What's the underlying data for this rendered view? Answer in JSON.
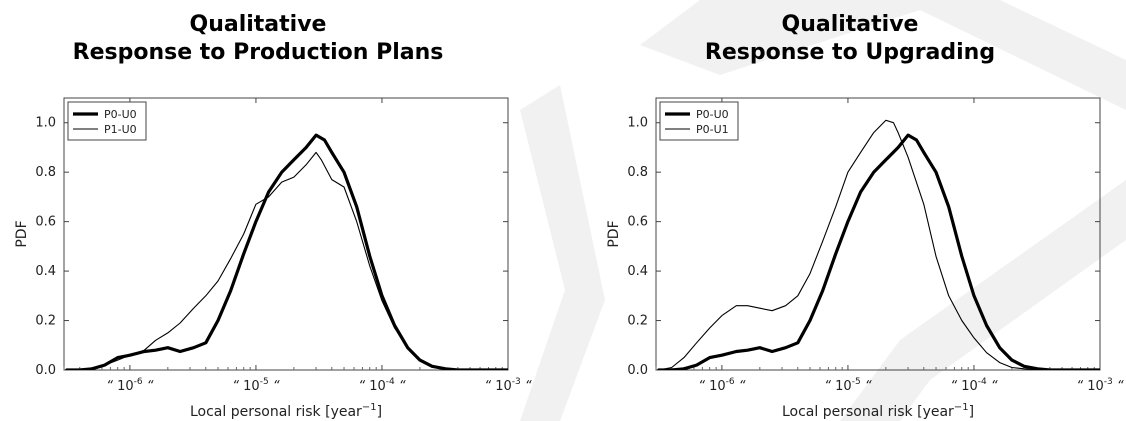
{
  "chart_data": [
    {
      "type": "line",
      "title_line1": "Qualitative",
      "title_line2": "Response to Production Plans",
      "xlabel": "Local personal risk",
      "xunit_base": "[year",
      "xunit_exp": "−1",
      "xunit_close": "]",
      "ylabel": "PDF",
      "xscale": "log",
      "xlim": [
        3e-07,
        0.001
      ],
      "ylim": [
        0,
        1.1
      ],
      "yticks": [
        "0.0",
        "0.2",
        "0.4",
        "0.6",
        "0.8",
        "1.0"
      ],
      "xticks": [
        {
          "base": "10",
          "exp": "-6"
        },
        {
          "base": "10",
          "exp": "-5"
        },
        {
          "base": "10",
          "exp": "-4"
        },
        {
          "base": "10",
          "exp": "-3"
        }
      ],
      "tick_quote": "“",
      "legend_position": "top-left",
      "series": [
        {
          "name": "P0-U0",
          "thick": true,
          "x": [
            3.16e-07,
            4e-07,
            5e-07,
            6.3e-07,
            8e-07,
            1e-06,
            1.3e-06,
            1.6e-06,
            2e-06,
            2.5e-06,
            3.2e-06,
            4e-06,
            5e-06,
            6.3e-06,
            8e-06,
            1e-05,
            1.26e-05,
            1.6e-05,
            2e-05,
            2.5e-05,
            3e-05,
            3.5e-05,
            4e-05,
            5e-05,
            6.3e-05,
            8e-05,
            0.0001,
            0.000126,
            0.00016,
            0.0002,
            0.00025,
            0.00032,
            0.0004,
            0.0005,
            0.0007,
            0.001
          ],
          "y": [
            0.0,
            0.0,
            0.005,
            0.02,
            0.05,
            0.06,
            0.075,
            0.08,
            0.09,
            0.075,
            0.09,
            0.11,
            0.2,
            0.32,
            0.47,
            0.6,
            0.72,
            0.8,
            0.85,
            0.9,
            0.95,
            0.93,
            0.88,
            0.8,
            0.66,
            0.46,
            0.3,
            0.18,
            0.09,
            0.04,
            0.015,
            0.005,
            0.0,
            0.0,
            0.0,
            0.0
          ]
        },
        {
          "name": "P1-U0",
          "thick": false,
          "x": [
            3.16e-07,
            4e-07,
            5e-07,
            6.3e-07,
            8e-07,
            1e-06,
            1.3e-06,
            1.6e-06,
            2e-06,
            2.5e-06,
            3.2e-06,
            4e-06,
            5e-06,
            6.3e-06,
            8e-06,
            1e-05,
            1.26e-05,
            1.6e-05,
            2e-05,
            2.5e-05,
            3e-05,
            3.3e-05,
            4e-05,
            5e-05,
            6.3e-05,
            8e-05,
            0.0001,
            0.000126,
            0.00016,
            0.0002,
            0.00025,
            0.00032,
            0.0004,
            0.0005,
            0.0007,
            0.001
          ],
          "y": [
            0.0,
            0.0,
            0.005,
            0.02,
            0.04,
            0.06,
            0.08,
            0.12,
            0.15,
            0.19,
            0.25,
            0.3,
            0.36,
            0.45,
            0.55,
            0.67,
            0.7,
            0.76,
            0.78,
            0.83,
            0.88,
            0.85,
            0.77,
            0.74,
            0.6,
            0.42,
            0.28,
            0.17,
            0.09,
            0.04,
            0.015,
            0.005,
            0.0,
            0.0,
            0.0,
            0.0
          ]
        }
      ]
    },
    {
      "type": "line",
      "title_line1": "Qualitative",
      "title_line2": "Response to Upgrading",
      "xlabel": "Local personal risk",
      "xunit_base": "[year",
      "xunit_exp": "−1",
      "xunit_close": "]",
      "ylabel": "PDF",
      "xscale": "log",
      "xlim": [
        3e-07,
        0.001
      ],
      "ylim": [
        0,
        1.1
      ],
      "yticks": [
        "0.0",
        "0.2",
        "0.4",
        "0.6",
        "0.8",
        "1.0"
      ],
      "xticks": [
        {
          "base": "10",
          "exp": "-6"
        },
        {
          "base": "10",
          "exp": "-5"
        },
        {
          "base": "10",
          "exp": "-4"
        },
        {
          "base": "10",
          "exp": "-3"
        }
      ],
      "tick_quote": "“",
      "legend_position": "top-left",
      "series": [
        {
          "name": "P0-U0",
          "thick": true,
          "x": [
            3.16e-07,
            4e-07,
            5e-07,
            6.3e-07,
            8e-07,
            1e-06,
            1.3e-06,
            1.6e-06,
            2e-06,
            2.5e-06,
            3.2e-06,
            4e-06,
            5e-06,
            6.3e-06,
            8e-06,
            1e-05,
            1.26e-05,
            1.6e-05,
            2e-05,
            2.5e-05,
            3e-05,
            3.5e-05,
            4e-05,
            5e-05,
            6.3e-05,
            8e-05,
            0.0001,
            0.000126,
            0.00016,
            0.0002,
            0.00025,
            0.00032,
            0.0004,
            0.0005,
            0.0007,
            0.001
          ],
          "y": [
            0.0,
            0.0,
            0.005,
            0.02,
            0.05,
            0.06,
            0.075,
            0.08,
            0.09,
            0.075,
            0.09,
            0.11,
            0.2,
            0.32,
            0.47,
            0.6,
            0.72,
            0.8,
            0.85,
            0.9,
            0.95,
            0.93,
            0.88,
            0.8,
            0.66,
            0.46,
            0.3,
            0.18,
            0.09,
            0.04,
            0.015,
            0.005,
            0.0,
            0.0,
            0.0,
            0.0
          ]
        },
        {
          "name": "P0-U1",
          "thick": false,
          "x": [
            3.16e-07,
            4e-07,
            5e-07,
            6.3e-07,
            8e-07,
            1e-06,
            1.3e-06,
            1.6e-06,
            2e-06,
            2.5e-06,
            3.2e-06,
            4e-06,
            5e-06,
            6.3e-06,
            8e-06,
            1e-05,
            1.26e-05,
            1.6e-05,
            2e-05,
            2.3e-05,
            2.5e-05,
            3e-05,
            4e-05,
            5e-05,
            6.3e-05,
            8e-05,
            0.0001,
            0.000126,
            0.00016,
            0.0002,
            0.00025,
            0.00032,
            0.0004,
            0.0005,
            0.0007,
            0.001
          ],
          "y": [
            0.0,
            0.01,
            0.05,
            0.11,
            0.17,
            0.22,
            0.26,
            0.26,
            0.25,
            0.24,
            0.26,
            0.3,
            0.39,
            0.52,
            0.66,
            0.8,
            0.88,
            0.96,
            1.01,
            1.0,
            0.96,
            0.86,
            0.67,
            0.46,
            0.3,
            0.2,
            0.13,
            0.07,
            0.03,
            0.01,
            0.005,
            0.0,
            0.0,
            0.0,
            0.0,
            0.0
          ]
        }
      ]
    }
  ]
}
